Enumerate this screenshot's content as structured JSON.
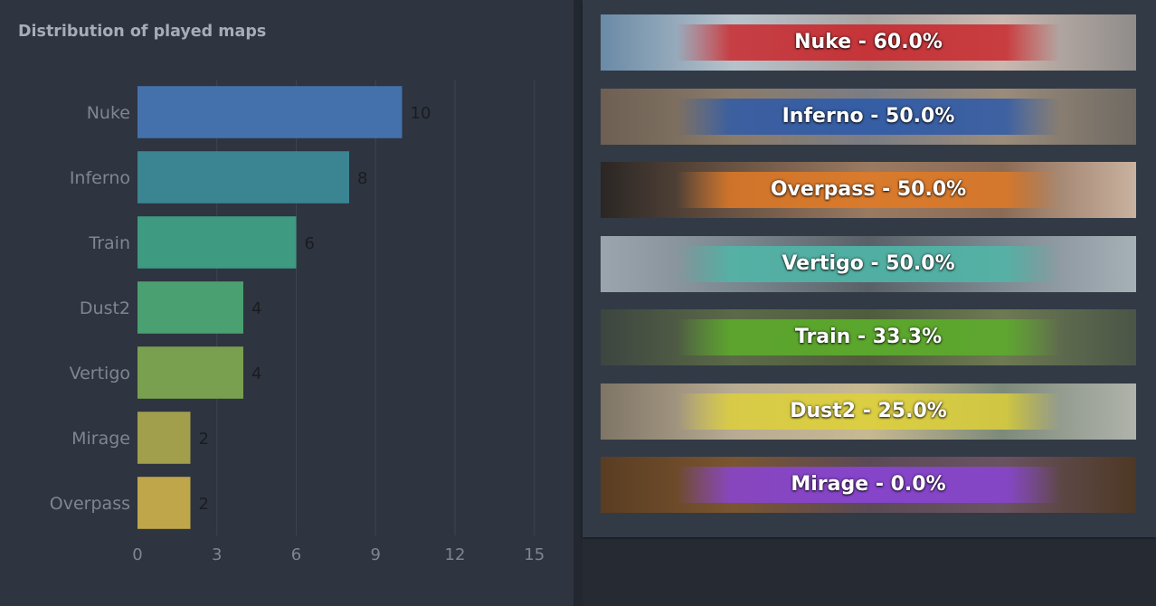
{
  "chart_data": {
    "type": "bar",
    "orientation": "horizontal",
    "title": "Distribution of played maps",
    "categories": [
      "Nuke",
      "Inferno",
      "Train",
      "Dust2",
      "Vertigo",
      "Mirage",
      "Overpass"
    ],
    "values": [
      10,
      8,
      6,
      4,
      4,
      2,
      2
    ],
    "value_labels": [
      "10",
      "8",
      "6",
      "4",
      "4",
      "2",
      "2"
    ],
    "bar_colors": [
      "#4471ac",
      "#3a8591",
      "#3e9a81",
      "#4aa070",
      "#79a04e",
      "#a19e4c",
      "#bfa64a"
    ],
    "xlim": [
      0,
      16
    ],
    "xticks": [
      0,
      3,
      6,
      9,
      12,
      15
    ],
    "xtick_labels": [
      "0",
      "3",
      "6",
      "9",
      "12",
      "15"
    ],
    "grid": true,
    "xlabel": "",
    "ylabel": ""
  },
  "map_winrates": [
    {
      "map": "Nuke",
      "label": "Nuke - 60.0%",
      "winrate": 60.0,
      "color": "#c8282d"
    },
    {
      "map": "Inferno",
      "label": "Inferno - 50.0%",
      "winrate": 50.0,
      "color": "#2e5aa8"
    },
    {
      "map": "Overpass",
      "label": "Overpass - 50.0%",
      "winrate": 50.0,
      "color": "#e07a26"
    },
    {
      "map": "Vertigo",
      "label": "Vertigo - 50.0%",
      "winrate": 50.0,
      "color": "#4fb7a8"
    },
    {
      "map": "Train",
      "label": "Train - 33.3%",
      "winrate": 33.3,
      "color": "#5cae2a"
    },
    {
      "map": "Dust2",
      "label": "Dust2 - 25.0%",
      "winrate": 25.0,
      "color": "#ddd03a"
    },
    {
      "map": "Mirage",
      "label": "Mirage - 0.0%",
      "winrate": 0.0,
      "color": "#8a44d6"
    }
  ]
}
